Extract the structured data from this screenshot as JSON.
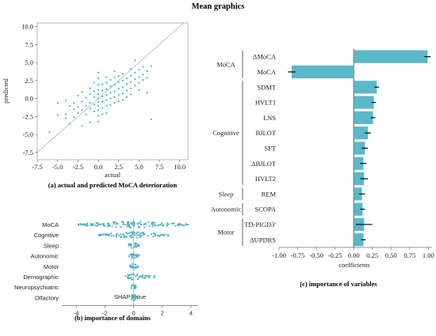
{
  "figure_title": "Mean graphics",
  "chart_data": [
    {
      "panel": "a",
      "type": "scatter",
      "caption": "(a) actual and predicted MoCA deterioration",
      "xlabel": "actual",
      "ylabel": "predicted",
      "xlim": [
        -7.5,
        11
      ],
      "ylim": [
        -8.5,
        10.5
      ],
      "xticks": [
        "-7.5",
        "-5.0",
        "-2.5",
        "0.0",
        "2.5",
        "5.0",
        "7.5",
        "10.0"
      ],
      "xtick_values": [
        -7.5,
        -5,
        -2.5,
        0,
        2.5,
        5,
        7.5,
        10
      ],
      "yticks": [
        "10.0",
        "7.5",
        "5.0",
        "2.5",
        "0.0",
        "-2.5",
        "-5.0",
        "-7.5"
      ],
      "ytick_values": [
        10,
        7.5,
        5,
        2.5,
        0,
        -2.5,
        -5,
        -7.5
      ],
      "identity_line": true,
      "grid": false,
      "color": "#4fb3c6",
      "points": [
        [
          -6,
          -4.7
        ],
        [
          -5,
          -2.3
        ],
        [
          -5,
          -0.6
        ],
        [
          -4,
          -0.3
        ],
        [
          -4,
          -2.2
        ],
        [
          -4,
          -2.8
        ],
        [
          -3.5,
          -3.5
        ],
        [
          -3.5,
          -1.0
        ],
        [
          -3,
          -1.5
        ],
        [
          -3,
          -0.6
        ],
        [
          -3,
          -2.6
        ],
        [
          -2.5,
          0.4
        ],
        [
          -2.5,
          -1.2
        ],
        [
          -2.5,
          -2.0
        ],
        [
          -2,
          -0.4
        ],
        [
          -2,
          -1.6
        ],
        [
          -2,
          0.9
        ],
        [
          -2,
          -3.8
        ],
        [
          -1.5,
          0.1
        ],
        [
          -1.5,
          -1.0
        ],
        [
          -1.5,
          -2.2
        ],
        [
          -1,
          0.6
        ],
        [
          -1,
          -0.6
        ],
        [
          -1,
          -1.4
        ],
        [
          -1,
          1.4
        ],
        [
          -1,
          -3.3
        ],
        [
          -0.5,
          0.2
        ],
        [
          -0.5,
          -0.8
        ],
        [
          -0.5,
          1.0
        ],
        [
          -0.5,
          -1.8
        ],
        [
          -0.5,
          2.2
        ],
        [
          0,
          0.0
        ],
        [
          0,
          -0.5
        ],
        [
          0,
          -1.0
        ],
        [
          0,
          0.6
        ],
        [
          0,
          1.2
        ],
        [
          0,
          -1.6
        ],
        [
          0,
          1.9
        ],
        [
          0,
          -2.4
        ],
        [
          0,
          2.8
        ],
        [
          0,
          -3.2
        ],
        [
          0,
          3.6
        ],
        [
          0.5,
          0.3
        ],
        [
          0.5,
          -0.4
        ],
        [
          0.5,
          1.1
        ],
        [
          0.5,
          -1.3
        ],
        [
          0.5,
          2.0
        ],
        [
          0.5,
          -2.2
        ],
        [
          1,
          0.5
        ],
        [
          1,
          -0.2
        ],
        [
          1,
          1.3
        ],
        [
          1,
          -1.0
        ],
        [
          1,
          2.2
        ],
        [
          1,
          -2.0
        ],
        [
          1,
          3.0
        ],
        [
          1.5,
          0.8
        ],
        [
          1.5,
          0.0
        ],
        [
          1.5,
          1.7
        ],
        [
          1.5,
          -0.9
        ],
        [
          1.5,
          2.6
        ],
        [
          2,
          1.0
        ],
        [
          2,
          0.2
        ],
        [
          2,
          1.9
        ],
        [
          2,
          -0.6
        ],
        [
          2,
          2.9
        ],
        [
          2,
          3.8
        ],
        [
          2.5,
          1.4
        ],
        [
          2.5,
          0.5
        ],
        [
          2.5,
          2.3
        ],
        [
          2.5,
          -0.4
        ],
        [
          2.5,
          3.1
        ],
        [
          3,
          1.6
        ],
        [
          3,
          0.7
        ],
        [
          3,
          2.5
        ],
        [
          3,
          -0.2
        ],
        [
          3,
          3.4
        ],
        [
          3.5,
          2.0
        ],
        [
          3.5,
          1.1
        ],
        [
          3.5,
          2.8
        ],
        [
          3.5,
          0.2
        ],
        [
          4,
          2.3
        ],
        [
          4,
          1.4
        ],
        [
          4,
          3.2
        ],
        [
          4,
          0.6
        ],
        [
          4,
          4.1
        ],
        [
          4.5,
          2.7
        ],
        [
          4.5,
          1.8
        ],
        [
          4.5,
          3.6
        ],
        [
          4.5,
          5.3
        ],
        [
          5,
          3.0
        ],
        [
          5,
          2.2
        ],
        [
          5,
          4.0
        ],
        [
          5,
          1.2
        ],
        [
          5.5,
          3.3
        ],
        [
          5.5,
          2.6
        ],
        [
          5.5,
          4.4
        ],
        [
          6,
          3.8
        ],
        [
          6,
          2.9
        ],
        [
          6,
          0.8
        ],
        [
          6.5,
          4.5
        ],
        [
          6.5,
          -2.9
        ]
      ]
    },
    {
      "panel": "b",
      "type": "scatter",
      "subtype": "beeswarm",
      "caption": "(b) importance of domains",
      "xlabel": "SHAP value",
      "xlim": [
        -5,
        4.5
      ],
      "xticks": [
        "-4",
        "-2",
        "0",
        "2",
        "4"
      ],
      "xtick_values": [
        -4,
        -2,
        0,
        2,
        4
      ],
      "color": "#4fb3c6",
      "categories": [
        "MoCA",
        "Cognitive",
        "Sleep",
        "Autonomic",
        "Motor",
        "Demographic",
        "Neuropsychiatric",
        "Olfactory"
      ],
      "spread": [
        [
          -3.9,
          4.0
        ],
        [
          -2.4,
          2.6
        ],
        [
          -0.35,
          0.4
        ],
        [
          -0.35,
          0.4
        ],
        [
          -0.3,
          0.35
        ],
        [
          -0.6,
          1.5
        ],
        [
          -0.2,
          0.2
        ],
        [
          -0.15,
          0.15
        ]
      ]
    },
    {
      "panel": "c",
      "type": "bar",
      "orientation": "horizontal",
      "caption": "(c) importance of variables",
      "xlabel": "coefficients",
      "xlim": [
        -1.0,
        1.05
      ],
      "xticks": [
        "-1.00",
        "-0.75",
        "-0.50",
        "-0.25",
        "0.00",
        "0.25",
        "0.50",
        "0.75",
        "1.00"
      ],
      "xtick_values": [
        -1,
        -0.75,
        -0.5,
        -0.25,
        0,
        0.25,
        0.5,
        0.75,
        1
      ],
      "color": "#5bb8c8",
      "categories": [
        "ΔMoCA",
        "MoCA",
        "SDMT",
        "HVLT1",
        "LNS",
        "BJLOT",
        "SFT",
        "ΔBJLOT",
        "HVLT2",
        "REM",
        "SCOPA",
        "TD-PIGD3'",
        "ΔUPDRS"
      ],
      "values": [
        0.99,
        -0.83,
        0.31,
        0.27,
        0.26,
        0.19,
        0.15,
        0.13,
        0.14,
        0.11,
        0.12,
        0.14,
        0.13
      ],
      "errors": [
        0.04,
        0.05,
        0.03,
        0.03,
        0.03,
        0.04,
        0.04,
        0.04,
        0.05,
        0.04,
        0.03,
        0.11,
        0.03
      ],
      "groups": [
        {
          "name": "MoCA",
          "rows": [
            0,
            1
          ]
        },
        {
          "name": "Cognitive",
          "rows": [
            2,
            8
          ]
        },
        {
          "name": "Sleep",
          "rows": [
            9,
            9
          ]
        },
        {
          "name": "Autonomic",
          "rows": [
            10,
            10
          ]
        },
        {
          "name": "Motor",
          "rows": [
            11,
            12
          ]
        }
      ]
    }
  ]
}
